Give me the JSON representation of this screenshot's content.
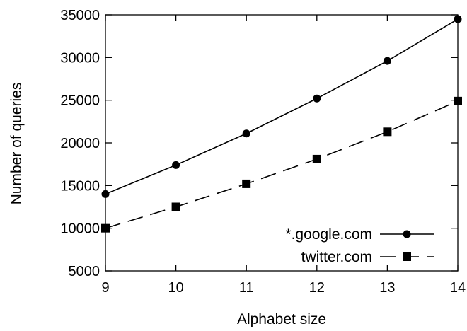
{
  "chart_data": {
    "type": "line",
    "xlabel": "Alphabet size",
    "ylabel": "Number of queries",
    "x": [
      9,
      10,
      11,
      12,
      13,
      14
    ],
    "xlim": [
      9,
      14
    ],
    "ylim": [
      5000,
      35000
    ],
    "xticks": [
      9,
      10,
      11,
      12,
      13,
      14
    ],
    "yticks": [
      5000,
      10000,
      15000,
      20000,
      25000,
      30000,
      35000
    ],
    "grid": false,
    "legend_position": "bottom-right",
    "series": [
      {
        "name": "*.google.com",
        "values": [
          14000,
          17400,
          21100,
          25200,
          29600,
          34500
        ],
        "color": "#000000",
        "line_style": "solid",
        "marker": "circle"
      },
      {
        "name": "twitter.com",
        "values": [
          10000,
          12500,
          15200,
          18100,
          21300,
          24900
        ],
        "color": "#000000",
        "line_style": "dashed",
        "marker": "square"
      }
    ]
  }
}
